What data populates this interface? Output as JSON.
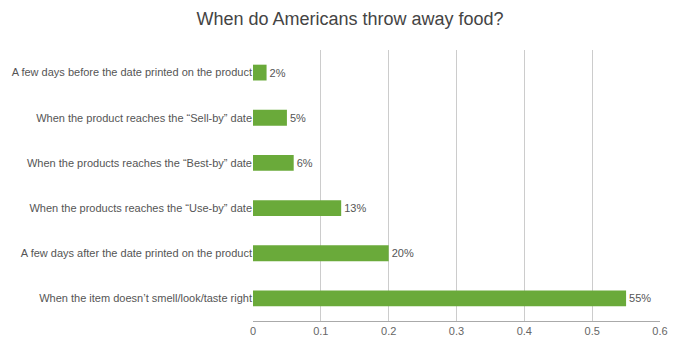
{
  "chart_data": {
    "type": "bar",
    "orientation": "horizontal",
    "title": "When do Americans throw away food?",
    "categories": [
      "When the item doesn’t smell/look/taste right",
      "A few days after the date printed on the product",
      "When the products reaches the “Use-by” date",
      "When the products reaches the “Best-by” date",
      "When the product reaches the “Sell-by” date",
      "A few days before the date printed on the product"
    ],
    "values": [
      0.55,
      0.2,
      0.13,
      0.06,
      0.05,
      0.02
    ],
    "value_labels": [
      "55%",
      "20%",
      "13%",
      "6%",
      "5%",
      "2%"
    ],
    "data_labels": true,
    "color": "#6aaa3a",
    "xlim": [
      0,
      0.6
    ],
    "xticks": [
      0,
      0.1,
      0.2,
      0.3,
      0.4,
      0.5,
      0.6
    ],
    "grid": true
  }
}
